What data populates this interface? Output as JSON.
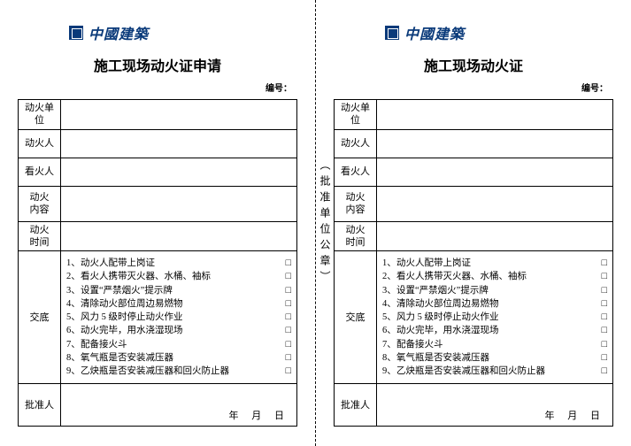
{
  "brand": "中國建築",
  "left": {
    "title": "施工现场动火证申请",
    "serial_label": "编号：",
    "rows": {
      "unit": "动火单位",
      "person": "动火人",
      "watcher": "看火人",
      "content_l1": "动火",
      "content_l2": "内容",
      "time_l1": "动火",
      "time_l2": "时间",
      "jd": "交底",
      "approve": "批准人"
    },
    "checklist": [
      "动火人配带上岗证",
      "看火人携带灭火器、水桶、袖标",
      "设置“严禁烟火”提示牌",
      "清除动火部位周边易燃物",
      "风力 5 级时停止动火作业",
      "动火完毕，用水浇湿现场",
      "配备接火斗",
      "氧气瓶是否安装减压器",
      "乙炔瓶是否安装减压器和回火防止器"
    ],
    "date": "年  月  日"
  },
  "right": {
    "title": "施工现场动火证",
    "serial_label": "编号：",
    "rows": {
      "unit": "动火单位",
      "person": "动火人",
      "watcher": "看火人",
      "content_l1": "动火",
      "content_l2": "内容",
      "time_l1": "动火",
      "time_l2": "时间",
      "jd": "交底",
      "approve": "批准人"
    },
    "checklist": [
      "动火人配带上岗证",
      "看火人携带灭火器、水桶、袖标",
      "设置“严禁烟火”提示牌",
      "清除动火部位周边易燃物",
      "风力 5 级时停止动火作业",
      "动火完毕，用水浇湿现场",
      "配备接火斗",
      "氧气瓶是否安装减压器",
      "乙炔瓶是否安装减压器和回火防止器"
    ],
    "date": "年  月  日"
  },
  "divider_text": "︵批准单位公章︶",
  "checkbox_glyph": "□",
  "colors": {
    "brand": "#0a3a7a",
    "border": "#000000",
    "background": "#ffffff"
  }
}
